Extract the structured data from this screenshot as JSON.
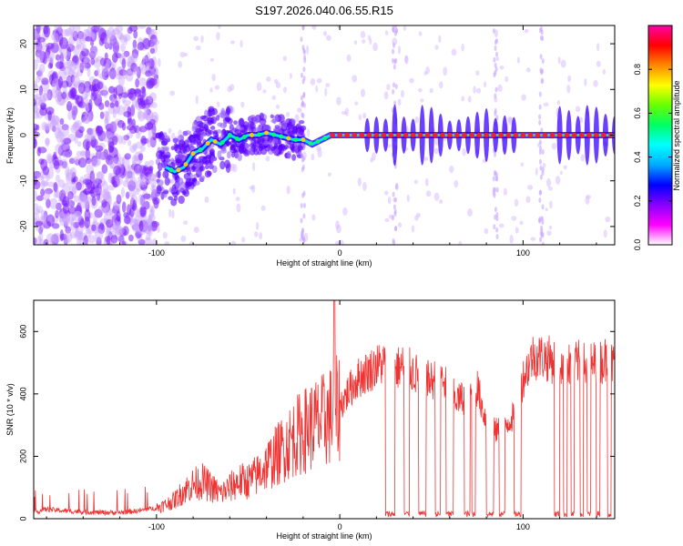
{
  "chart_data": [
    {
      "type": "heatmap",
      "title": "S197.2026.040.06.55.R15",
      "xlabel": "Height of straight line (km)",
      "ylabel": "Frequency (Hz)",
      "xlim": [
        -167,
        150
      ],
      "ylim": [
        -24,
        24
      ],
      "xticks": [
        -100,
        0,
        100
      ],
      "yticks": [
        -20,
        -10,
        0,
        10,
        20
      ],
      "colorbar": {
        "label": "Normalized spectral amplitude",
        "range": [
          0.0,
          1.0
        ],
        "ticks": [
          "0.0",
          "0.2",
          "0.4",
          "0.6",
          "0.8"
        ],
        "colors": [
          "#ffffff",
          "#ff00ff",
          "#8800ff",
          "#0000ff",
          "#00aaff",
          "#00ffff",
          "#00ff66",
          "#66ff00",
          "#ffff00",
          "#ff8800",
          "#ff0000",
          "#ff00aa"
        ]
      },
      "ridge": {
        "x": [
          -100,
          -90,
          -85,
          -80,
          -75,
          -70,
          -65,
          -60,
          -55,
          -50,
          -45,
          -40,
          -35,
          -30,
          -25,
          -20,
          -15,
          -10,
          -5,
          0,
          50,
          100,
          150
        ],
        "y": [
          -6,
          -8,
          -7,
          -4,
          -3,
          -1,
          -2,
          0,
          -1,
          0,
          0,
          0.5,
          0,
          -0.5,
          -1,
          -1,
          -2,
          -1,
          0,
          0,
          0,
          0,
          0
        ]
      }
    },
    {
      "type": "line",
      "title": "",
      "xlabel": "Height of straight line (km)",
      "ylabel": "SNR (10 * v/v)",
      "xlim": [
        -167,
        150
      ],
      "ylim": [
        0,
        700
      ],
      "xticks": [
        -100,
        0,
        100
      ],
      "yticks": [
        0,
        200,
        400,
        600
      ],
      "color": "#ee3333",
      "series": [
        {
          "name": "SNR",
          "x": [
            -167,
            -160,
            -150,
            -140,
            -130,
            -120,
            -110,
            -100,
            -95,
            -90,
            -85,
            -80,
            -75,
            -70,
            -65,
            -60,
            -55,
            -50,
            -45,
            -40,
            -35,
            -30,
            -25,
            -20,
            -15,
            -10,
            -5,
            0,
            5,
            10,
            15,
            20,
            25,
            30,
            35,
            40,
            45,
            50,
            55,
            60,
            65,
            70,
            75,
            80,
            85,
            90,
            95,
            100,
            105,
            110,
            115,
            120,
            125,
            130,
            135,
            140,
            145,
            150
          ],
          "y": [
            20,
            30,
            25,
            22,
            20,
            20,
            25,
            35,
            45,
            60,
            90,
            110,
            120,
            100,
            80,
            100,
            120,
            120,
            140,
            170,
            200,
            230,
            260,
            280,
            300,
            310,
            330,
            360,
            410,
            450,
            470,
            490,
            500,
            480,
            490,
            470,
            450,
            440,
            460,
            400,
            380,
            400,
            420,
            310,
            280,
            300,
            330,
            450,
            520,
            520,
            510,
            500,
            490,
            500,
            490,
            500,
            510,
            490
          ],
          "dropouts": [
            [
              25,
              30
            ],
            [
              35,
              38
            ],
            [
              43,
              47
            ],
            [
              52,
              55
            ],
            [
              58,
              62
            ],
            [
              68,
              71
            ],
            [
              72,
              74
            ],
            [
              80,
              84
            ],
            [
              87,
              90
            ],
            [
              95,
              99
            ],
            [
              117,
              120
            ],
            [
              122,
              124
            ],
            [
              126,
              128
            ],
            [
              131,
              133
            ],
            [
              135,
              137
            ],
            [
              140,
              142
            ],
            [
              146,
              148
            ]
          ]
        }
      ]
    }
  ]
}
